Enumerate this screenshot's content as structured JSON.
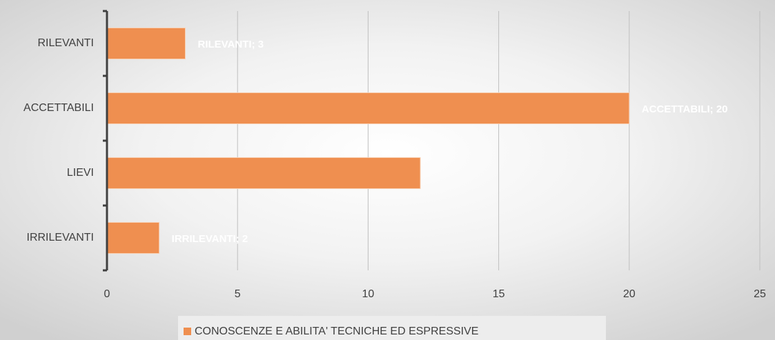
{
  "chart_data": {
    "type": "bar",
    "orientation": "horizontal",
    "categories": [
      "RILEVANTI",
      "ACCETTABILI",
      "LIEVI",
      "IRRILEVANTI"
    ],
    "series": [
      {
        "name": "CONOSCENZE E ABILITA' TECNICHE ED ESPRESSIVE",
        "color": "#ef8f50",
        "values": [
          3,
          20,
          12,
          2
        ],
        "value_labels": [
          "RILEVANTI; 3",
          "ACCETTABILI; 20",
          null,
          "IRRILEVANTI; 2"
        ]
      }
    ],
    "xlim": [
      0,
      25
    ],
    "xticks": [
      0,
      5,
      10,
      15,
      20,
      25
    ],
    "grid": true,
    "legend": "bottom"
  }
}
